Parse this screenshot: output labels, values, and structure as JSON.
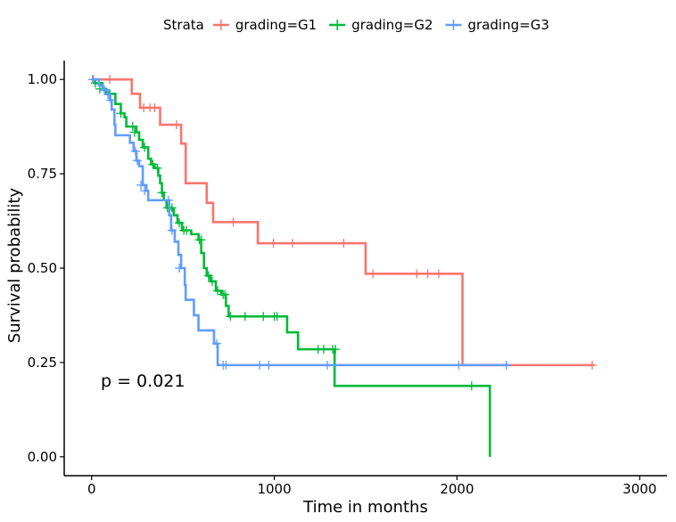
{
  "chart_data": {
    "type": "line",
    "subtype": "kaplan-meier step curves with censor marks",
    "xlabel": "Time in months",
    "ylabel": "Survival probability",
    "xlim": [
      -150,
      3150
    ],
    "ylim": [
      -0.05,
      1.05
    ],
    "x_ticks": [
      0,
      1000,
      2000,
      3000
    ],
    "x_tick_labels": [
      "0",
      "1000",
      "2000",
      "3000"
    ],
    "y_ticks": [
      0,
      0.25,
      0.5,
      0.75,
      1.0
    ],
    "y_tick_labels": [
      "0.00",
      "0.25",
      "0.50",
      "0.75",
      "1.00"
    ],
    "grid": false,
    "legend": {
      "placement": "top",
      "title": "Strata",
      "entries": [
        "grading=G1",
        "grading=G2",
        "grading=G3"
      ]
    },
    "annotation": "p = 0.021",
    "series": [
      {
        "name": "grading=G1",
        "color": "#F8766D",
        "steps": [
          [
            0,
            1.0
          ],
          [
            220,
            0.962
          ],
          [
            265,
            0.925
          ],
          [
            375,
            0.88
          ],
          [
            490,
            0.83
          ],
          [
            515,
            0.725
          ],
          [
            630,
            0.673
          ],
          [
            665,
            0.622
          ],
          [
            910,
            0.566
          ],
          [
            1500,
            0.485
          ],
          [
            2030,
            0.243
          ],
          [
            2750,
            0.243
          ]
        ],
        "censored": [
          [
            10,
            1.0
          ],
          [
            100,
            1.0
          ],
          [
            285,
            0.925
          ],
          [
            320,
            0.925
          ],
          [
            345,
            0.925
          ],
          [
            465,
            0.88
          ],
          [
            775,
            0.622
          ],
          [
            995,
            0.566
          ],
          [
            1100,
            0.566
          ],
          [
            1380,
            0.566
          ],
          [
            1540,
            0.485
          ],
          [
            1780,
            0.485
          ],
          [
            1840,
            0.485
          ],
          [
            1900,
            0.485
          ],
          [
            2740,
            0.243
          ]
        ]
      },
      {
        "name": "grading=G2",
        "color": "#00BA38",
        "steps": [
          [
            0,
            1.0
          ],
          [
            20,
            0.99
          ],
          [
            60,
            0.975
          ],
          [
            80,
            0.962
          ],
          [
            130,
            0.935
          ],
          [
            160,
            0.91
          ],
          [
            180,
            0.9
          ],
          [
            190,
            0.875
          ],
          [
            245,
            0.86
          ],
          [
            260,
            0.84
          ],
          [
            280,
            0.82
          ],
          [
            310,
            0.79
          ],
          [
            325,
            0.775
          ],
          [
            345,
            0.765
          ],
          [
            365,
            0.745
          ],
          [
            375,
            0.725
          ],
          [
            385,
            0.7
          ],
          [
            395,
            0.68
          ],
          [
            410,
            0.66
          ],
          [
            440,
            0.655
          ],
          [
            450,
            0.64
          ],
          [
            470,
            0.62
          ],
          [
            495,
            0.6
          ],
          [
            545,
            0.59
          ],
          [
            585,
            0.575
          ],
          [
            600,
            0.54
          ],
          [
            615,
            0.5
          ],
          [
            630,
            0.48
          ],
          [
            650,
            0.465
          ],
          [
            680,
            0.44
          ],
          [
            710,
            0.43
          ],
          [
            735,
            0.4
          ],
          [
            750,
            0.372
          ],
          [
            1070,
            0.33
          ],
          [
            1130,
            0.285
          ],
          [
            1330,
            0.188
          ],
          [
            2180,
            0.0
          ]
        ],
        "censored": [
          [
            20,
            0.99
          ],
          [
            45,
            0.975
          ],
          [
            100,
            0.962
          ],
          [
            160,
            0.91
          ],
          [
            225,
            0.875
          ],
          [
            235,
            0.86
          ],
          [
            290,
            0.82
          ],
          [
            335,
            0.775
          ],
          [
            360,
            0.765
          ],
          [
            385,
            0.7
          ],
          [
            415,
            0.66
          ],
          [
            425,
            0.66
          ],
          [
            440,
            0.66
          ],
          [
            480,
            0.62
          ],
          [
            505,
            0.6
          ],
          [
            520,
            0.6
          ],
          [
            590,
            0.575
          ],
          [
            600,
            0.575
          ],
          [
            640,
            0.48
          ],
          [
            660,
            0.465
          ],
          [
            690,
            0.44
          ],
          [
            720,
            0.43
          ],
          [
            730,
            0.43
          ],
          [
            760,
            0.372
          ],
          [
            840,
            0.372
          ],
          [
            940,
            0.372
          ],
          [
            1000,
            0.372
          ],
          [
            1015,
            0.372
          ],
          [
            1240,
            0.285
          ],
          [
            1270,
            0.285
          ],
          [
            1320,
            0.285
          ],
          [
            1335,
            0.285
          ],
          [
            2080,
            0.188
          ]
        ]
      },
      {
        "name": "grading=G3",
        "color": "#619CFF",
        "steps": [
          [
            0,
            1.0
          ],
          [
            40,
            0.985
          ],
          [
            60,
            0.972
          ],
          [
            90,
            0.96
          ],
          [
            100,
            0.945
          ],
          [
            110,
            0.92
          ],
          [
            125,
            0.88
          ],
          [
            130,
            0.852
          ],
          [
            210,
            0.832
          ],
          [
            230,
            0.81
          ],
          [
            245,
            0.785
          ],
          [
            260,
            0.77
          ],
          [
            280,
            0.72
          ],
          [
            300,
            0.705
          ],
          [
            310,
            0.68
          ],
          [
            425,
            0.64
          ],
          [
            435,
            0.6
          ],
          [
            455,
            0.57
          ],
          [
            475,
            0.535
          ],
          [
            490,
            0.5
          ],
          [
            510,
            0.455
          ],
          [
            515,
            0.416
          ],
          [
            560,
            0.375
          ],
          [
            585,
            0.335
          ],
          [
            670,
            0.3
          ],
          [
            690,
            0.243
          ],
          [
            2290,
            0.243
          ]
        ],
        "censored": [
          [
            5,
            1.0
          ],
          [
            70,
            0.972
          ],
          [
            90,
            0.96
          ],
          [
            105,
            0.945
          ],
          [
            240,
            0.81
          ],
          [
            250,
            0.785
          ],
          [
            270,
            0.72
          ],
          [
            290,
            0.705
          ],
          [
            420,
            0.68
          ],
          [
            440,
            0.6
          ],
          [
            480,
            0.5
          ],
          [
            685,
            0.3
          ],
          [
            720,
            0.243
          ],
          [
            735,
            0.243
          ],
          [
            920,
            0.243
          ],
          [
            970,
            0.243
          ],
          [
            1290,
            0.243
          ],
          [
            2010,
            0.243
          ],
          [
            2270,
            0.243
          ]
        ]
      }
    ]
  }
}
